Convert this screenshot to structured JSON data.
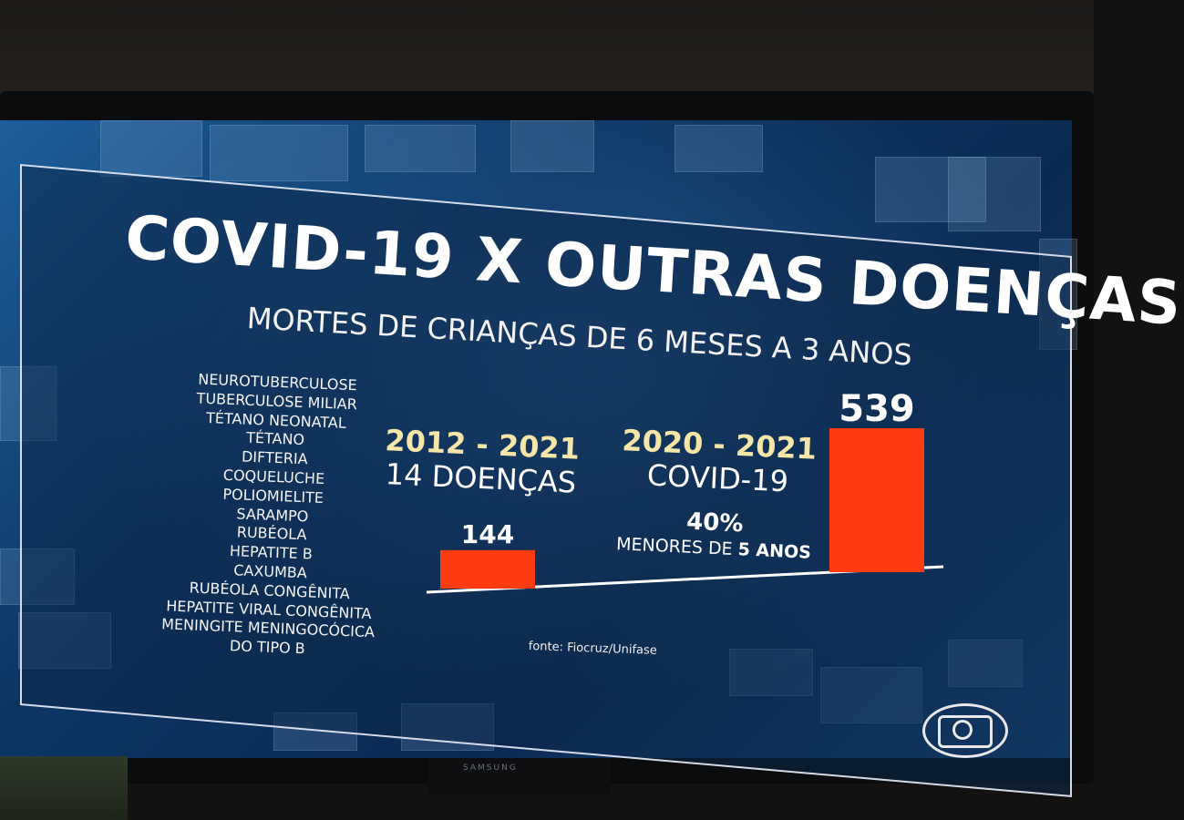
{
  "title": "COVID-19 X OUTRAS DOENÇAS",
  "subtitle": "MORTES DE CRIANÇAS DE 6 MESES A 3 ANOS",
  "diseases": [
    "NEUROTUBERCULOSE",
    "TUBERCULOSE MILIAR",
    "TÉTANO NEONATAL",
    "TÉTANO",
    "DIFTERIA",
    "COQUELUCHE",
    "POLIOMIELITE",
    "SARAMPO",
    "RUBÉOLA",
    "HEPATITE B",
    "CAXUMBA",
    "RUBÉOLA CONGÊNITA",
    "HEPATITE VIRAL CONGÊNITA",
    "MENINGITE MENINGOCÓCICA",
    "DO TIPO B"
  ],
  "groups": [
    {
      "period": "2012 - 2021",
      "label": "14 DOENÇAS"
    },
    {
      "period": "2020 - 2021",
      "label": "COVID-19"
    }
  ],
  "covid_note": {
    "percent": "40%",
    "label_prefix": "MENORES DE ",
    "label_bold": "5 ANOS"
  },
  "source": "fonte: Fiocruz/Unifase",
  "brand": "SAMSUNG",
  "chart_data": {
    "type": "bar",
    "categories": [
      "2012 - 2021",
      "2020 - 2021"
    ],
    "values": [
      144,
      539
    ],
    "data_labels": [
      "144",
      "539"
    ],
    "title": "COVID-19 X OUTRAS DOENÇAS",
    "subtitle": "MORTES DE CRIANÇAS DE 6 MESES A 3 ANOS",
    "bar_color": "#ff3b12",
    "label_color": "#ffffff",
    "grid": false,
    "legend": "none"
  }
}
